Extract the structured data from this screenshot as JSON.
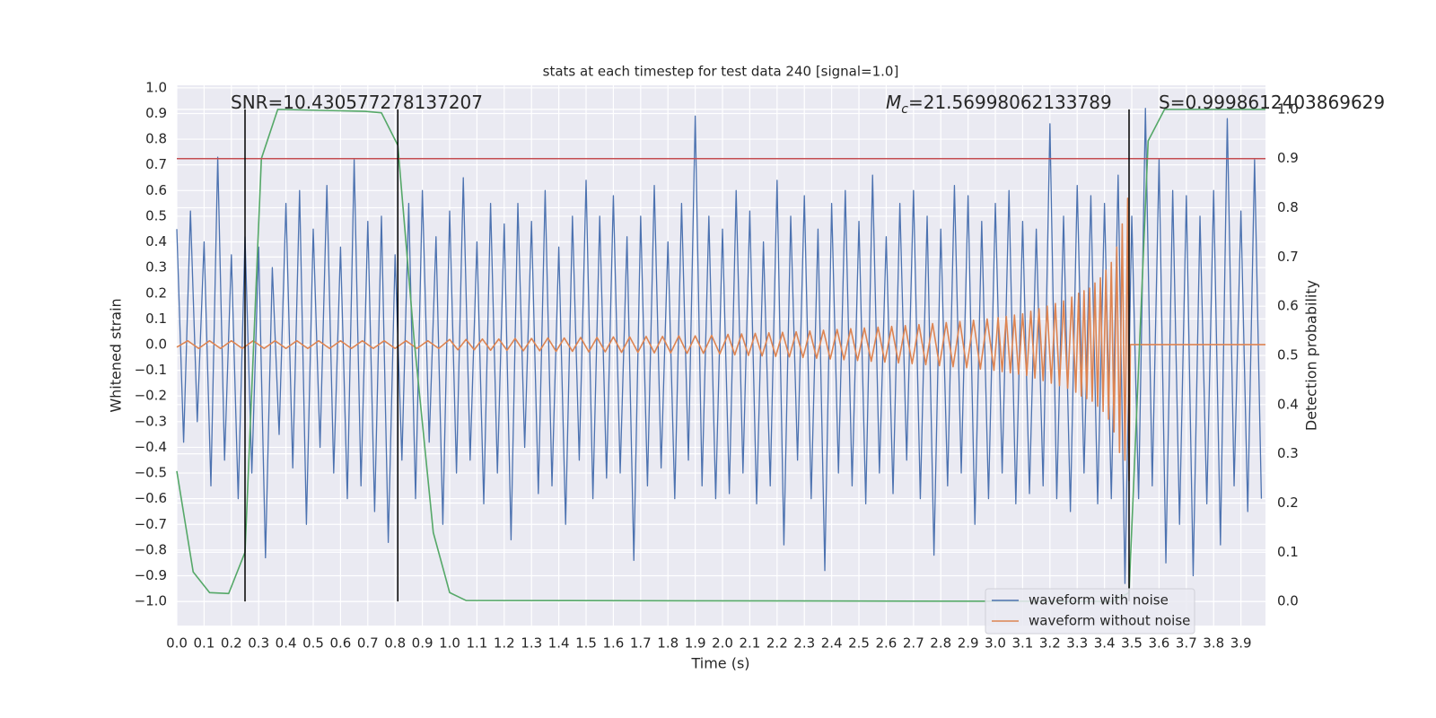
{
  "chart_data": {
    "type": "line",
    "title": "stats at each timestep for test data 240 [signal=1.0]",
    "x_label": "Time (s)",
    "y_label": "Whitened strain",
    "y2_label": "Detection probability",
    "xlim": [
      0,
      3.99
    ],
    "ylim": [
      -1.094,
      1.01
    ],
    "y2lim": [
      -0.049,
      1.049
    ],
    "grid": true,
    "xticks": [
      {
        "value": 0,
        "label": "0.0"
      },
      {
        "value": 0.1,
        "label": "0.1"
      },
      {
        "value": 0.2,
        "label": "0.2"
      },
      {
        "value": 0.3,
        "label": "0.3"
      },
      {
        "value": 0.4,
        "label": "0.4"
      },
      {
        "value": 0.5,
        "label": "0.5"
      },
      {
        "value": 0.6,
        "label": "0.6"
      },
      {
        "value": 0.7,
        "label": "0.7"
      },
      {
        "value": 0.8,
        "label": "0.8"
      },
      {
        "value": 0.9,
        "label": "0.9"
      },
      {
        "value": 1,
        "label": "1.0"
      },
      {
        "value": 1.1,
        "label": "1.1"
      },
      {
        "value": 1.2,
        "label": "1.2"
      },
      {
        "value": 1.3,
        "label": "1.3"
      },
      {
        "value": 1.4,
        "label": "1.4"
      },
      {
        "value": 1.5,
        "label": "1.5"
      },
      {
        "value": 1.6,
        "label": "1.6"
      },
      {
        "value": 1.7,
        "label": "1.7"
      },
      {
        "value": 1.8,
        "label": "1.8"
      },
      {
        "value": 1.9,
        "label": "1.9"
      },
      {
        "value": 2,
        "label": "2.0"
      },
      {
        "value": 2.1,
        "label": "2.1"
      },
      {
        "value": 2.2,
        "label": "2.2"
      },
      {
        "value": 2.3,
        "label": "2.3"
      },
      {
        "value": 2.4,
        "label": "2.4"
      },
      {
        "value": 2.5,
        "label": "2.5"
      },
      {
        "value": 2.6,
        "label": "2.6"
      },
      {
        "value": 2.7,
        "label": "2.7"
      },
      {
        "value": 2.8,
        "label": "2.8"
      },
      {
        "value": 2.9,
        "label": "2.9"
      },
      {
        "value": 3,
        "label": "3.0"
      },
      {
        "value": 3.1,
        "label": "3.1"
      },
      {
        "value": 3.2,
        "label": "3.2"
      },
      {
        "value": 3.3,
        "label": "3.3"
      },
      {
        "value": 3.4,
        "label": "3.4"
      },
      {
        "value": 3.5,
        "label": "3.5"
      },
      {
        "value": 3.6,
        "label": "3.6"
      },
      {
        "value": 3.7,
        "label": "3.7"
      },
      {
        "value": 3.8,
        "label": "3.8"
      },
      {
        "value": 3.9,
        "label": "3.9"
      }
    ],
    "yticks": [
      {
        "value": 1,
        "label": "1.0"
      },
      {
        "value": 0.9,
        "label": "0.9"
      },
      {
        "value": 0.8,
        "label": "0.8"
      },
      {
        "value": 0.7,
        "label": "0.7"
      },
      {
        "value": 0.6,
        "label": "0.6"
      },
      {
        "value": 0.5,
        "label": "0.5"
      },
      {
        "value": 0.4,
        "label": "0.4"
      },
      {
        "value": 0.3,
        "label": "0.3"
      },
      {
        "value": 0.2,
        "label": "0.2"
      },
      {
        "value": 0.1,
        "label": "0.1"
      },
      {
        "value": 0,
        "label": "0.0"
      },
      {
        "value": -0.1,
        "label": "−0.1"
      },
      {
        "value": -0.2,
        "label": "−0.2"
      },
      {
        "value": -0.3,
        "label": "−0.3"
      },
      {
        "value": -0.4,
        "label": "−0.4"
      },
      {
        "value": -0.5,
        "label": "−0.5"
      },
      {
        "value": -0.6,
        "label": "−0.6"
      },
      {
        "value": -0.7,
        "label": "−0.7"
      },
      {
        "value": -0.8,
        "label": "−0.8"
      },
      {
        "value": -0.9,
        "label": "−0.9"
      },
      {
        "value": -1,
        "label": "−1.0"
      }
    ],
    "y2ticks": [
      {
        "value": 1,
        "label": "1.0"
      },
      {
        "value": 0.9,
        "label": "0.9"
      },
      {
        "value": 0.8,
        "label": "0.8"
      },
      {
        "value": 0.7,
        "label": "0.7"
      },
      {
        "value": 0.6,
        "label": "0.6"
      },
      {
        "value": 0.5,
        "label": "0.5"
      },
      {
        "value": 0.4,
        "label": "0.4"
      },
      {
        "value": 0.3,
        "label": "0.3"
      },
      {
        "value": 0.2,
        "label": "0.2"
      },
      {
        "value": 0.1,
        "label": "0.1"
      },
      {
        "value": 0,
        "label": "0.0"
      }
    ],
    "legend": "lower right",
    "series": [
      {
        "name": "waveform with noise",
        "color": "#4c72b0",
        "x": [
          0,
          0.025,
          0.05,
          0.075,
          0.1,
          0.125,
          0.15,
          0.175,
          0.2,
          0.225,
          0.25,
          0.275,
          0.3,
          0.325,
          0.35,
          0.375,
          0.4,
          0.425,
          0.45,
          0.475,
          0.5,
          0.525,
          0.55,
          0.575,
          0.6,
          0.625,
          0.65,
          0.675,
          0.7,
          0.725,
          0.75,
          0.775,
          0.8,
          0.825,
          0.85,
          0.875,
          0.9,
          0.925,
          0.95,
          0.975,
          1,
          1.025,
          1.05,
          1.075,
          1.1,
          1.125,
          1.15,
          1.175,
          1.2,
          1.225,
          1.25,
          1.275,
          1.3,
          1.325,
          1.35,
          1.375,
          1.4,
          1.425,
          1.45,
          1.475,
          1.5,
          1.525,
          1.55,
          1.575,
          1.6,
          1.625,
          1.65,
          1.675,
          1.7,
          1.725,
          1.75,
          1.775,
          1.8,
          1.825,
          1.85,
          1.875,
          1.9,
          1.925,
          1.95,
          1.975,
          2,
          2.025,
          2.05,
          2.075,
          2.1,
          2.125,
          2.15,
          2.175,
          2.2,
          2.225,
          2.25,
          2.275,
          2.3,
          2.325,
          2.35,
          2.375,
          2.4,
          2.425,
          2.45,
          2.475,
          2.5,
          2.525,
          2.55,
          2.575,
          2.6,
          2.625,
          2.65,
          2.675,
          2.7,
          2.725,
          2.75,
          2.775,
          2.8,
          2.825,
          2.85,
          2.875,
          2.9,
          2.925,
          2.95,
          2.975,
          3,
          3.025,
          3.05,
          3.075,
          3.1,
          3.125,
          3.15,
          3.175,
          3.2,
          3.225,
          3.25,
          3.275,
          3.3,
          3.325,
          3.35,
          3.375,
          3.4,
          3.425,
          3.45,
          3.475,
          3.5,
          3.525,
          3.55,
          3.575,
          3.6,
          3.625,
          3.65,
          3.675,
          3.7,
          3.725,
          3.75,
          3.775,
          3.8,
          3.825,
          3.85,
          3.875,
          3.9,
          3.925,
          3.95,
          3.975
        ],
        "values": [
          0.45,
          -0.38,
          0.52,
          -0.3,
          0.4,
          -0.55,
          0.73,
          -0.45,
          0.35,
          -0.6,
          0.42,
          -0.5,
          0.38,
          -0.83,
          0.3,
          -0.35,
          0.55,
          -0.48,
          0.6,
          -0.7,
          0.45,
          -0.4,
          0.62,
          -0.5,
          0.38,
          -0.6,
          0.72,
          -0.55,
          0.48,
          -0.65,
          0.5,
          -0.77,
          0.35,
          -0.45,
          0.55,
          -0.6,
          0.6,
          -0.38,
          0.42,
          -0.7,
          0.52,
          -0.5,
          0.65,
          -0.45,
          0.4,
          -0.62,
          0.55,
          -0.5,
          0.47,
          -0.76,
          0.55,
          -0.4,
          0.48,
          -0.58,
          0.6,
          -0.55,
          0.38,
          -0.7,
          0.5,
          -0.45,
          0.64,
          -0.6,
          0.5,
          -0.52,
          0.58,
          -0.5,
          0.42,
          -0.84,
          0.5,
          -0.55,
          0.62,
          -0.48,
          0.4,
          -0.6,
          0.55,
          -0.45,
          0.89,
          -0.55,
          0.5,
          -0.6,
          0.45,
          -0.58,
          0.6,
          -0.5,
          0.52,
          -0.62,
          0.4,
          -0.55,
          0.64,
          -0.78,
          0.5,
          -0.45,
          0.58,
          -0.6,
          0.45,
          -0.88,
          0.55,
          -0.5,
          0.6,
          -0.55,
          0.48,
          -0.62,
          0.66,
          -0.5,
          0.42,
          -0.58,
          0.55,
          -0.45,
          0.6,
          -0.6,
          0.5,
          -0.82,
          0.45,
          -0.55,
          0.62,
          -0.5,
          0.58,
          -0.7,
          0.48,
          -0.6,
          0.55,
          -0.5,
          0.6,
          -0.62,
          0.48,
          -0.58,
          0.45,
          -0.55,
          0.86,
          -0.6,
          0.5,
          -0.65,
          0.62,
          -0.5,
          0.58,
          -0.62,
          0.55,
          -0.6,
          0.66,
          -0.93,
          0.5,
          -0.6,
          0.92,
          -0.55,
          0.72,
          -0.85,
          0.6,
          -0.7,
          0.58,
          -0.9,
          0.5,
          -0.62,
          0.6,
          -0.78,
          0.88,
          -0.55,
          0.52,
          -0.65,
          0.72,
          -0.6
        ]
      },
      {
        "name": "waveform without noise",
        "color": "#dd8452",
        "x": [
          0,
          0.04,
          0.08,
          0.12,
          0.16,
          0.2,
          0.24,
          0.28,
          0.32,
          0.36,
          0.4,
          0.44,
          0.48,
          0.52,
          0.56,
          0.6,
          0.64,
          0.68,
          0.72,
          0.76,
          0.8,
          0.84,
          0.88,
          0.92,
          0.96,
          1,
          1.03,
          1.06,
          1.09,
          1.12,
          1.15,
          1.18,
          1.21,
          1.24,
          1.27,
          1.3,
          1.33,
          1.36,
          1.39,
          1.42,
          1.45,
          1.48,
          1.51,
          1.54,
          1.57,
          1.6,
          1.63,
          1.66,
          1.69,
          1.72,
          1.75,
          1.78,
          1.81,
          1.84,
          1.87,
          1.9,
          1.93,
          1.96,
          1.99,
          2.02,
          2.045,
          2.07,
          2.095,
          2.12,
          2.145,
          2.17,
          2.195,
          2.22,
          2.245,
          2.27,
          2.295,
          2.32,
          2.345,
          2.37,
          2.395,
          2.42,
          2.445,
          2.47,
          2.495,
          2.52,
          2.545,
          2.57,
          2.595,
          2.62,
          2.645,
          2.67,
          2.695,
          2.72,
          2.745,
          2.77,
          2.795,
          2.82,
          2.845,
          2.87,
          2.895,
          2.92,
          2.945,
          2.97,
          2.995,
          3.01,
          3.025,
          3.04,
          3.055,
          3.07,
          3.085,
          3.1,
          3.115,
          3.13,
          3.145,
          3.16,
          3.175,
          3.19,
          3.205,
          3.22,
          3.235,
          3.25,
          3.265,
          3.28,
          3.295,
          3.305,
          3.315,
          3.325,
          3.335,
          3.345,
          3.355,
          3.365,
          3.375,
          3.385,
          3.395,
          3.405,
          3.415,
          3.425,
          3.435,
          3.445,
          3.455,
          3.465,
          3.475,
          3.485,
          3.49,
          3.495,
          3.99
        ],
        "values": [
          -0.01,
          0.015,
          -0.015,
          0.015,
          -0.015,
          0.015,
          -0.015,
          0.015,
          -0.015,
          0.015,
          -0.015,
          0.015,
          -0.015,
          0.015,
          -0.015,
          0.015,
          -0.015,
          0.015,
          -0.015,
          0.015,
          -0.015,
          0.015,
          -0.015,
          0.015,
          -0.015,
          0.02,
          -0.02,
          0.02,
          -0.02,
          0.022,
          -0.022,
          0.022,
          -0.022,
          0.024,
          -0.024,
          0.024,
          -0.024,
          0.026,
          -0.026,
          0.026,
          -0.026,
          0.028,
          -0.028,
          0.028,
          -0.028,
          0.03,
          -0.03,
          0.03,
          -0.03,
          0.032,
          -0.032,
          0.032,
          -0.032,
          0.034,
          -0.034,
          0.034,
          -0.034,
          0.036,
          -0.036,
          0.04,
          -0.04,
          0.042,
          -0.042,
          0.044,
          -0.044,
          0.046,
          -0.046,
          0.048,
          -0.048,
          0.05,
          -0.05,
          0.053,
          -0.053,
          0.056,
          -0.056,
          0.059,
          -0.059,
          0.062,
          -0.062,
          0.065,
          -0.065,
          0.068,
          -0.068,
          0.071,
          -0.071,
          0.074,
          -0.074,
          0.078,
          -0.078,
          0.082,
          -0.082,
          0.086,
          -0.086,
          0.09,
          -0.09,
          0.095,
          -0.095,
          0.1,
          -0.1,
          0.105,
          -0.105,
          0.11,
          -0.11,
          0.115,
          -0.115,
          0.12,
          -0.12,
          0.13,
          -0.13,
          0.14,
          -0.14,
          0.15,
          -0.15,
          0.16,
          -0.16,
          0.17,
          -0.17,
          0.185,
          -0.185,
          0.2,
          -0.2,
          0.21,
          -0.21,
          0.22,
          -0.22,
          0.24,
          -0.24,
          0.26,
          -0.26,
          0.29,
          -0.29,
          0.32,
          -0.34,
          0.38,
          -0.42,
          0.47,
          -0.45,
          0.57,
          -0.53,
          0,
          0
        ]
      },
      {
        "color": "#55a868",
        "axis": "y2",
        "x": [
          0,
          0.06,
          0.12,
          0.19,
          0.25,
          0.31,
          0.37,
          0.69,
          0.75,
          0.81,
          0.87,
          0.94,
          1,
          1.06,
          3.43,
          3.49,
          3.56,
          3.62,
          3.99
        ],
        "values": [
          0.265,
          0.06,
          0.018,
          0.016,
          0.1,
          0.9,
          1,
          0.996,
          0.993,
          0.927,
          0.53,
          0.14,
          0.018,
          0.002,
          0,
          0.018,
          0.936,
          1,
          1
        ]
      }
    ],
    "hline": {
      "value": 0.9,
      "axis": "y2",
      "color": "#c44e52"
    },
    "vlines": {
      "x": [
        0.25,
        0.81,
        3.49
      ],
      "y2span": [
        0,
        1
      ],
      "color": "#000000"
    },
    "annotations": [
      {
        "text": "SNR=10.430577278137207"
      },
      {
        "symbol": "M",
        "subscript": "c",
        "text": "=21.56998062133789"
      },
      {
        "text": "S=0.9998612403869629"
      }
    ]
  }
}
